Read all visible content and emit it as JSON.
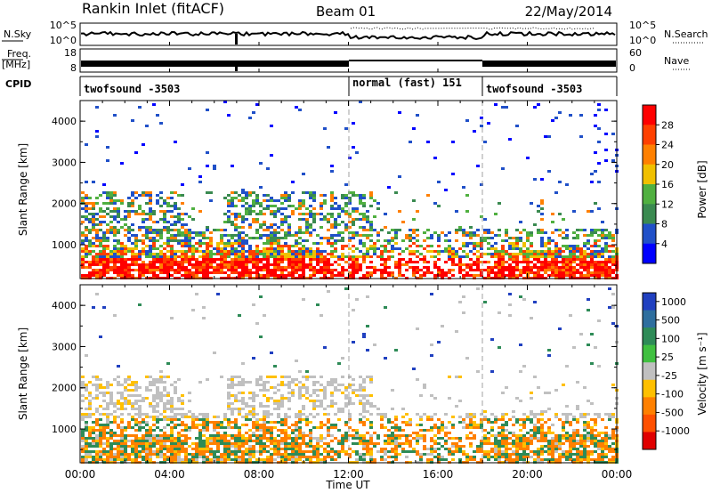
{
  "chart_data": {
    "type": "heatmap",
    "header": {
      "station": "Rankin Inlet (fitACF)",
      "beam": "Beam 01",
      "date": "22/May/2014"
    },
    "summary": {
      "nsky_label": "N.Sky",
      "nsky_ticks": [
        "10^5",
        "10^0"
      ],
      "nsearch_label": "N.Search",
      "nsearch_ticks": [
        "10^5",
        "10^0"
      ],
      "freq_label": "Freq.",
      "freq_unit": "[MHz]",
      "freq_ticks": [
        "18",
        "8"
      ],
      "nave_label": "Nave",
      "nave_ticks": [
        "60",
        "0"
      ],
      "cpid_label": "CPID",
      "cpid_segments": [
        {
          "label": "twofsound -3503",
          "start_h": 0,
          "end_h": 12
        },
        {
          "label": "normal (fast) 151",
          "start_h": 12,
          "end_h": 18
        },
        {
          "label": "twofsound -3503",
          "start_h": 18,
          "end_h": 24
        }
      ]
    },
    "xaxis": {
      "label": "Time UT",
      "ticks": [
        "00:00",
        "04:00",
        "08:00",
        "12:00",
        "16:00",
        "20:00",
        "00:00"
      ],
      "range_h": [
        0,
        24
      ]
    },
    "yaxis": {
      "label": "Slant Range [km]",
      "ticks": [
        "1000",
        "2000",
        "3000",
        "4000"
      ],
      "range": [
        180,
        4500
      ]
    },
    "panels": [
      {
        "kind": "power",
        "cbar_label": "Power [dB]",
        "cbar_ticks": [
          "4",
          "8",
          "12",
          "16",
          "20",
          "24",
          "28"
        ],
        "cbar_colors": [
          "#0000ff",
          "#2050c8",
          "#3a8a50",
          "#50b040",
          "#f0c000",
          "#ff8000",
          "#ff4000",
          "#ff0000"
        ]
      },
      {
        "kind": "velocity",
        "cbar_label": "Velocity [m s⁻¹]",
        "cbar_ticks": [
          "1000",
          "500",
          "100",
          "25",
          "-25",
          "-100",
          "-500",
          "-1000"
        ],
        "cbar_colors": [
          "#2040c0",
          "#2e6e9e",
          "#2e8b57",
          "#40c040",
          "#c0c0c0",
          "#ffc000",
          "#ff8000",
          "#ff5000",
          "#e00000"
        ]
      }
    ]
  }
}
